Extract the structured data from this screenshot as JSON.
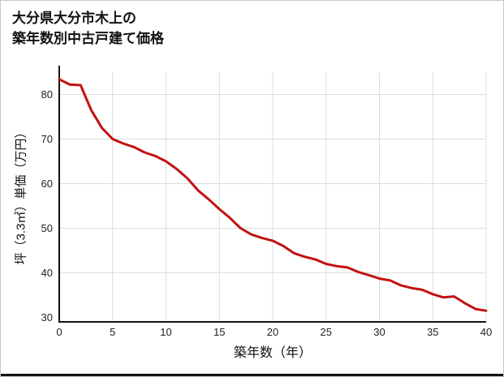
{
  "page": {
    "title_line1": "大分県大分市木上の",
    "title_line2": "築年数別中古戸建て価格"
  },
  "chart_data": {
    "type": "line",
    "title": "大分県大分市木上の築年数別中古戸建て価格",
    "xlabel": "築年数（年）",
    "ylabel": "坪（3.3㎡）単価（万円）",
    "x": [
      0,
      1,
      2,
      3,
      4,
      5,
      6,
      7,
      8,
      9,
      10,
      11,
      12,
      13,
      14,
      15,
      16,
      17,
      18,
      19,
      20,
      21,
      22,
      23,
      24,
      25,
      26,
      27,
      28,
      29,
      30,
      31,
      32,
      33,
      34,
      35,
      36,
      37,
      38,
      39,
      40
    ],
    "values": [
      83.4,
      82.2,
      82.1,
      76.5,
      72.5,
      70.0,
      69.0,
      68.2,
      67.0,
      66.2,
      65.0,
      63.3,
      61.2,
      58.5,
      56.5,
      54.3,
      52.3,
      50.0,
      48.6,
      47.8,
      47.2,
      46.0,
      44.4,
      43.6,
      43.0,
      42.0,
      41.5,
      41.2,
      40.2,
      39.5,
      38.7,
      38.3,
      37.2,
      36.6,
      36.2,
      35.2,
      34.5,
      34.7,
      33.2,
      31.9,
      31.5
    ],
    "xlim": [
      0,
      40
    ],
    "ylim": [
      29,
      85
    ],
    "xticks": [
      0,
      5,
      10,
      15,
      20,
      25,
      30,
      35,
      40
    ],
    "yticks": [
      30,
      40,
      50,
      60,
      70,
      80
    ],
    "grid": true,
    "legend_position": "none",
    "line_color": "#c11212",
    "grid_color": "#dcdcdc",
    "axis_color": "#111111",
    "tick_label_color": "#222222"
  }
}
